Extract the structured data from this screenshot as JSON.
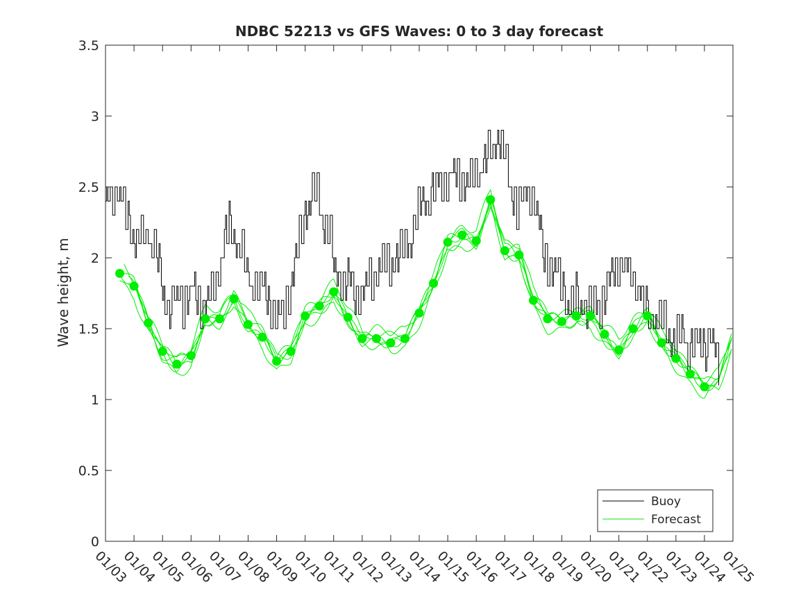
{
  "chart_data": {
    "type": "line",
    "title": "NDBC 52213 vs GFS Waves: 0 to 3 day forecast",
    "xlabel": "",
    "ylabel": "Wave height, m",
    "xlim": [
      0,
      22
    ],
    "ylim": [
      0,
      3.5
    ],
    "y_ticks": [
      "0",
      "0.5",
      "1",
      "1.5",
      "2",
      "2.5",
      "3",
      "3.5"
    ],
    "x_ticks": [
      "01/03",
      "01/04",
      "01/05",
      "01/06",
      "01/07",
      "01/08",
      "01/09",
      "01/10",
      "01/11",
      "01/12",
      "01/13",
      "01/14",
      "01/15",
      "01/16",
      "01/17",
      "01/18",
      "01/19",
      "01/20",
      "01/21",
      "01/22",
      "01/23",
      "01/24",
      "01/25"
    ],
    "legend": {
      "position": "bottom-right",
      "entries": [
        "Buoy",
        "Forecast"
      ]
    },
    "colors": {
      "buoy": "#000000",
      "forecast": "#00ee00",
      "axis": "#262626"
    },
    "buoy_anchor_days": [
      0,
      0.2,
      0.45,
      0.7,
      1.0,
      1.2,
      1.5,
      1.8,
      2.0,
      2.2,
      2.6,
      3.0,
      3.4,
      3.6,
      3.8,
      4.0,
      4.2,
      4.4,
      4.6,
      4.8,
      5.0,
      5.3,
      5.6,
      6.0,
      6.2,
      6.5,
      6.8,
      7.0,
      7.4,
      7.6,
      7.9,
      8.0,
      8.3,
      8.6,
      8.8,
      9.0,
      9.2,
      9.4,
      9.7,
      10.0,
      10.4,
      10.8,
      11.0,
      11.4,
      11.8,
      12.0,
      12.4,
      12.8,
      13.0,
      13.3,
      13.6,
      13.8,
      14.0,
      14.2,
      14.5,
      14.8,
      15.0,
      15.2,
      15.4,
      15.6,
      15.8,
      16.0,
      16.3,
      16.6,
      17.0,
      17.4,
      17.8,
      18.0,
      18.3,
      18.6,
      18.8,
      19.0,
      19.2,
      19.6,
      19.9,
      20.2,
      20.6,
      21.0,
      21.2,
      21.35,
      21.5
    ],
    "buoy_anchor_values": [
      2.35,
      2.45,
      2.5,
      2.3,
      2.15,
      2.1,
      2.2,
      2.0,
      1.75,
      1.7,
      1.7,
      1.75,
      1.7,
      1.65,
      1.75,
      1.95,
      2.15,
      2.2,
      2.15,
      2.05,
      1.85,
      1.8,
      1.75,
      1.55,
      1.6,
      1.8,
      2.1,
      2.35,
      2.5,
      2.3,
      2.1,
      1.95,
      1.85,
      1.8,
      1.75,
      1.75,
      1.8,
      1.9,
      1.95,
      1.95,
      2.05,
      2.2,
      2.35,
      2.45,
      2.5,
      2.55,
      2.6,
      2.5,
      2.6,
      2.7,
      2.75,
      2.9,
      2.7,
      2.5,
      2.35,
      2.45,
      2.45,
      2.2,
      2.0,
      1.95,
      1.9,
      1.8,
      1.65,
      1.7,
      1.65,
      1.7,
      1.9,
      2.0,
      1.9,
      1.85,
      1.7,
      1.6,
      1.6,
      1.55,
      1.4,
      1.45,
      1.35,
      1.4,
      1.45,
      1.35,
      1.25
    ],
    "forecast_markers": {
      "x": [
        0.5,
        1.0,
        1.5,
        2.0,
        2.5,
        3.0,
        3.5,
        4.0,
        4.5,
        5.0,
        5.5,
        6.0,
        6.5,
        7.0,
        7.5,
        8.0,
        8.5,
        9.0,
        9.5,
        10.0,
        10.5,
        11.0,
        11.5,
        12.0,
        12.5,
        13.0,
        13.5,
        14.0,
        14.5,
        15.0,
        15.5,
        16.0,
        16.5,
        17.0,
        17.5,
        18.0,
        18.5,
        19.0,
        19.5,
        20.0,
        20.5,
        21.0
      ],
      "y": [
        1.89,
        1.8,
        1.54,
        1.34,
        1.25,
        1.31,
        1.57,
        1.57,
        1.71,
        1.53,
        1.44,
        1.27,
        1.34,
        1.59,
        1.66,
        1.76,
        1.58,
        1.43,
        1.43,
        1.4,
        1.43,
        1.61,
        1.82,
        2.11,
        2.16,
        2.12,
        2.41,
        2.05,
        2.02,
        1.7,
        1.57,
        1.55,
        1.59,
        1.59,
        1.46,
        1.35,
        1.5,
        1.59,
        1.4,
        1.29,
        1.18,
        1.09
      ]
    },
    "forecast_tail": {
      "x": [
        21.5,
        22.0
      ],
      "y": [
        1.15,
        1.45
      ]
    },
    "forecast_run_offsets": [
      0.0,
      0.05,
      -0.05,
      0.08,
      -0.08,
      0.03
    ]
  }
}
